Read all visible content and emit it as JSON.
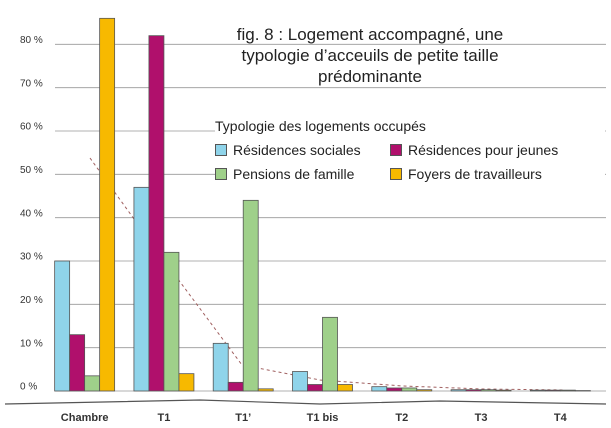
{
  "chart_data": {
    "type": "bar",
    "title": "fig. 8 : Logement accompagné, une typologie d’acceuils de petite taille prédominante",
    "legend_title": "Typologie des logements occupés",
    "categories": [
      "Chambre",
      "T1",
      "T1’",
      "T1 bis",
      "T2",
      "T3",
      "T4"
    ],
    "series": [
      {
        "name": "Résidences sociales",
        "color": "#8fd4ea",
        "values": [
          30,
          47,
          11,
          4.5,
          1,
          0.3,
          0.2
        ]
      },
      {
        "name": "Résidences pour jeunes",
        "color": "#b0106c",
        "values": [
          13,
          82,
          2,
          1.5,
          0.7,
          0.3,
          0.2
        ]
      },
      {
        "name": "Pensions de famille",
        "color": "#9fd08a",
        "values": [
          3.5,
          32,
          44,
          17,
          0.7,
          0.3,
          0.2
        ]
      },
      {
        "name": "Foyers de travailleurs",
        "color": "#f7b900",
        "values": [
          86,
          4,
          0.5,
          1.5,
          0.3,
          0.2,
          0.1
        ]
      }
    ],
    "ylim": [
      0,
      90
    ],
    "yticks": [
      {
        "value": 0,
        "label": "0 %"
      },
      {
        "value": 10,
        "label": "10 %"
      },
      {
        "value": 20,
        "label": "20 %"
      },
      {
        "value": 30,
        "label": "30 %"
      },
      {
        "value": 40,
        "label": "40 %"
      },
      {
        "value": 50,
        "label": "50 %"
      },
      {
        "value": 60,
        "label": "60 %"
      },
      {
        "value": 70,
        "label": "70 %"
      },
      {
        "value": 80,
        "label": "80 %"
      }
    ],
    "grid": true
  }
}
